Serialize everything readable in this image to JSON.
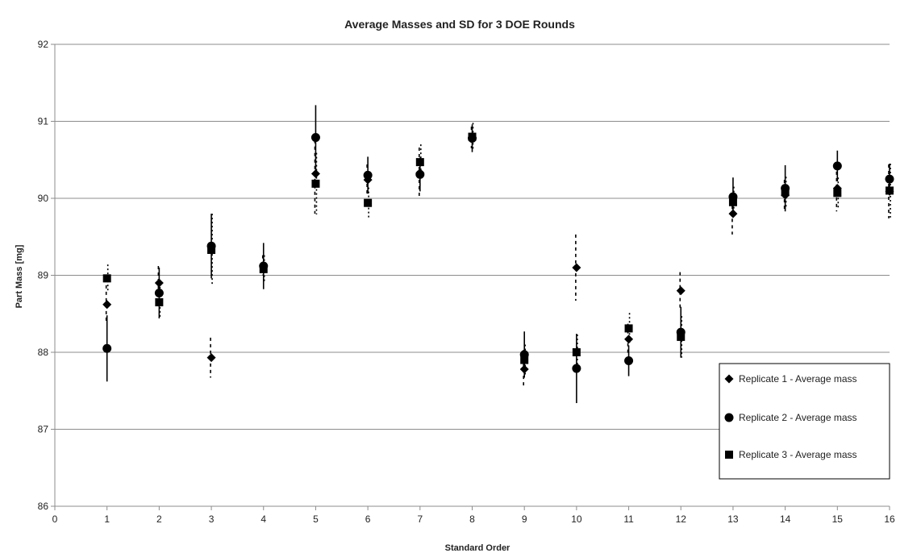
{
  "chart_data": {
    "type": "scatter",
    "title": "Average Masses and SD for 3 DOE Rounds",
    "xlabel": "Standard Order",
    "ylabel": "Part Mass [mg]",
    "xlim": [
      0,
      16
    ],
    "ylim": [
      86,
      92
    ],
    "x_ticks": [
      "0",
      "1",
      "2",
      "3",
      "4",
      "5",
      "6",
      "7",
      "8",
      "9",
      "10",
      "11",
      "12",
      "13",
      "14",
      "15",
      "16"
    ],
    "y_ticks": [
      "86",
      "87",
      "88",
      "89",
      "90",
      "91",
      "92"
    ],
    "grid": "horizontal",
    "legend_position": "bottom-right",
    "x": [
      1,
      2,
      3,
      4,
      5,
      6,
      7,
      8,
      9,
      10,
      11,
      12,
      13,
      14,
      15,
      16
    ],
    "series": [
      {
        "name": "Replicate 1 - Average mass",
        "marker": "diamond",
        "values": [
          88.62,
          88.9,
          87.93,
          89.13,
          90.32,
          90.24,
          90.33,
          90.79,
          87.78,
          89.1,
          88.17,
          88.8,
          89.8,
          90.04,
          90.13,
          90.09
        ],
        "sd": [
          0.25,
          0.22,
          0.26,
          0.13,
          0.52,
          0.2,
          0.33,
          0.14,
          0.25,
          0.43,
          0.2,
          0.24,
          0.27,
          0.2,
          0.3,
          0.35
        ]
      },
      {
        "name": "Replicate 2 - Average mass",
        "marker": "circle",
        "values": [
          88.05,
          88.77,
          89.38,
          89.12,
          90.79,
          90.3,
          90.31,
          90.78,
          87.97,
          87.79,
          87.89,
          88.26,
          90.02,
          90.13,
          90.42,
          90.25
        ],
        "sd": [
          0.43,
          0.33,
          0.42,
          0.3,
          0.42,
          0.24,
          0.22,
          0.18,
          0.3,
          0.45,
          0.2,
          0.33,
          0.25,
          0.3,
          0.2,
          0.2
        ]
      },
      {
        "name": "Replicate 3 - Average mass",
        "marker": "square",
        "values": [
          88.96,
          88.65,
          89.33,
          89.08,
          90.19,
          89.94,
          90.47,
          90.8,
          87.9,
          88.0,
          88.31,
          88.2,
          89.95,
          90.08,
          90.07,
          90.1
        ],
        "sd": [
          0.18,
          0.2,
          0.47,
          0.18,
          0.4,
          0.2,
          0.23,
          0.18,
          0.2,
          0.23,
          0.2,
          0.27,
          0.2,
          0.2,
          0.2,
          0.35
        ]
      }
    ]
  }
}
